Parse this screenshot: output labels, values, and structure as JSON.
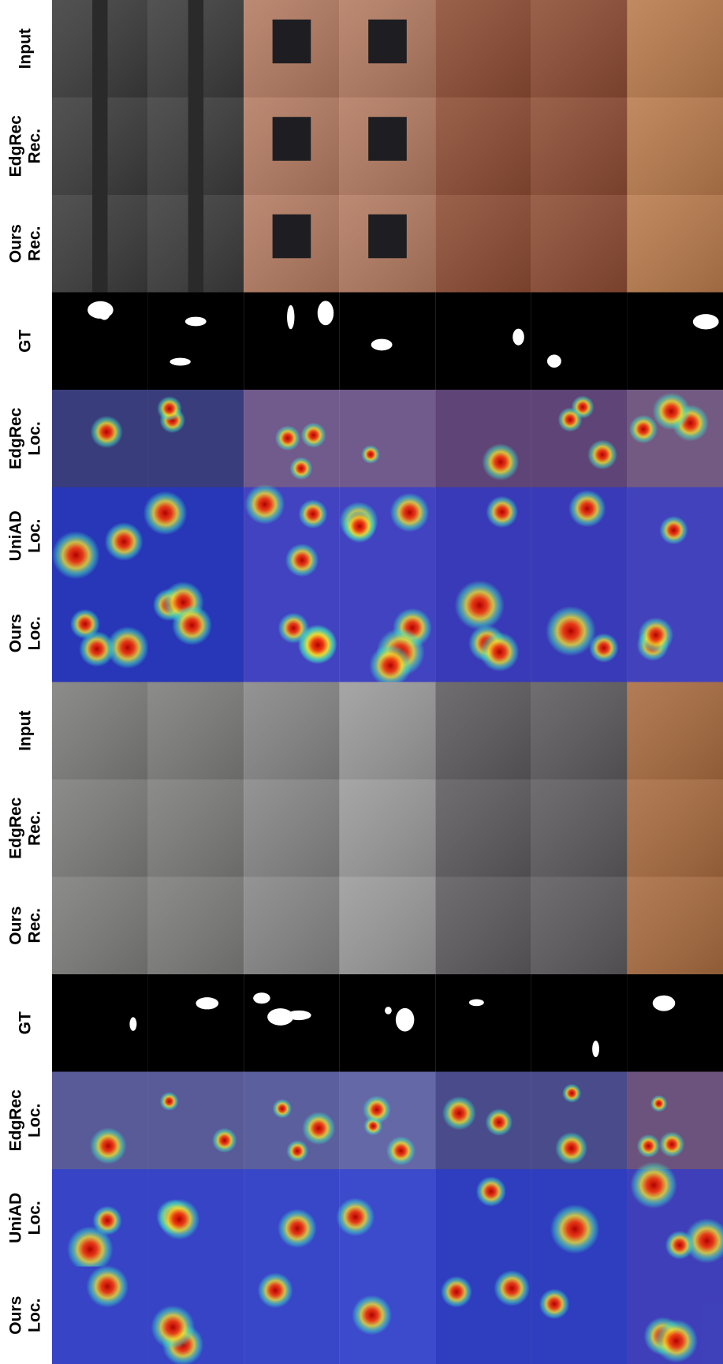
{
  "figure": {
    "groups": [
      {
        "rows": [
          {
            "label": [
              "Input"
            ]
          },
          {
            "label": [
              "EdgRec",
              "Rec."
            ]
          },
          {
            "label": [
              "Ours",
              "Rec."
            ]
          },
          {
            "label": [
              "GT"
            ]
          },
          {
            "label": [
              "EdgRec",
              "Loc."
            ]
          },
          {
            "label": [
              "UniAD",
              "Loc."
            ]
          },
          {
            "label": [
              "Ours",
              "Loc."
            ]
          }
        ]
      },
      {
        "rows": [
          {
            "label": [
              "Input"
            ]
          },
          {
            "label": [
              "EdgRec",
              "Rec."
            ]
          },
          {
            "label": [
              "Ours",
              "Rec."
            ]
          },
          {
            "label": [
              "GT"
            ]
          },
          {
            "label": [
              "EdgRec",
              "Loc."
            ]
          },
          {
            "label": [
              "UniAD",
              "Loc."
            ]
          },
          {
            "label": [
              "Ours",
              "Loc."
            ]
          }
        ]
      }
    ]
  }
}
